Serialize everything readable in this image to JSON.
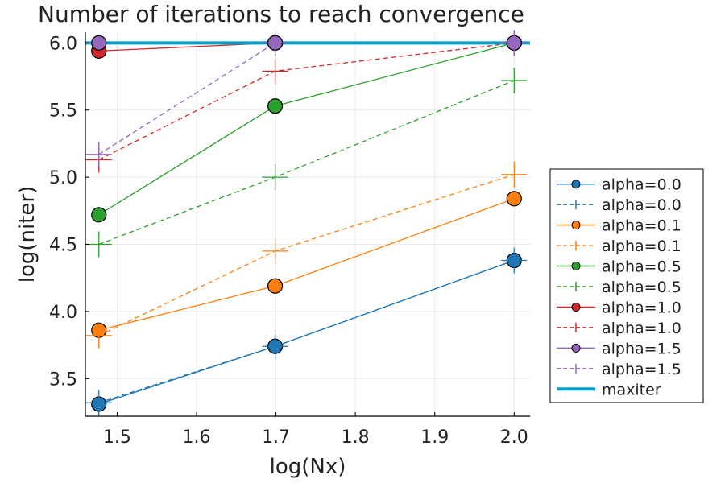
{
  "chart_data": {
    "type": "line",
    "title": "Number of iterations to reach convergence",
    "xlabel": "log(Nx)",
    "ylabel": "log(niter)",
    "xlim": [
      1.46,
      2.02
    ],
    "ylim": [
      3.22,
      6.08
    ],
    "xticks": [
      1.5,
      1.6,
      1.7,
      1.8,
      1.9,
      2.0
    ],
    "xtick_labels": [
      "1.5",
      "1.6",
      "1.7",
      "1.8",
      "1.9",
      "2.0"
    ],
    "yticks": [
      3.5,
      4.0,
      4.5,
      5.0,
      5.5,
      6.0
    ],
    "ytick_labels": [
      "3.5",
      "4.0",
      "4.5",
      "5.0",
      "5.5",
      "6.0"
    ],
    "grid": true,
    "legend_position": "outer-right",
    "x": [
      1.477,
      1.699,
      2.0
    ],
    "series": [
      {
        "name": "alpha=0.0",
        "color": "#1f77b4",
        "style": "solid",
        "marker": "circle",
        "values": [
          3.31,
          3.74,
          4.38
        ]
      },
      {
        "name": "alpha=0.0",
        "color": "#1f77b4",
        "style": "dashed",
        "marker": "cross",
        "values": [
          3.32,
          3.74,
          4.38
        ]
      },
      {
        "name": "alpha=0.1",
        "color": "#ff7f0e",
        "style": "solid",
        "marker": "circle",
        "values": [
          3.86,
          4.19,
          4.84
        ]
      },
      {
        "name": "alpha=0.1",
        "color": "#ff7f0e",
        "style": "dashed",
        "marker": "cross",
        "values": [
          3.82,
          4.45,
          5.02
        ]
      },
      {
        "name": "alpha=0.5",
        "color": "#2ca02c",
        "style": "solid",
        "marker": "circle",
        "values": [
          4.72,
          5.53,
          6.0
        ]
      },
      {
        "name": "alpha=0.5",
        "color": "#2ca02c",
        "style": "dashed",
        "marker": "cross",
        "values": [
          4.5,
          5.0,
          5.72
        ]
      },
      {
        "name": "alpha=1.0",
        "color": "#d62728",
        "style": "solid",
        "marker": "circle",
        "values": [
          5.94,
          6.0,
          6.0
        ]
      },
      {
        "name": "alpha=1.0",
        "color": "#d62728",
        "style": "dashed",
        "marker": "cross",
        "values": [
          5.13,
          5.79,
          6.0
        ]
      },
      {
        "name": "alpha=1.5",
        "color": "#9467bd",
        "style": "solid",
        "marker": "circle",
        "values": [
          6.0,
          6.0,
          6.0
        ]
      },
      {
        "name": "alpha=1.5",
        "color": "#9467bd",
        "style": "dashed",
        "marker": "cross",
        "values": [
          5.17,
          6.0,
          6.0
        ]
      },
      {
        "name": "maxiter",
        "color": "#00a0c8",
        "style": "thick",
        "marker": "none",
        "values": [
          6.0,
          6.0,
          6.0
        ],
        "span": "full"
      }
    ]
  }
}
